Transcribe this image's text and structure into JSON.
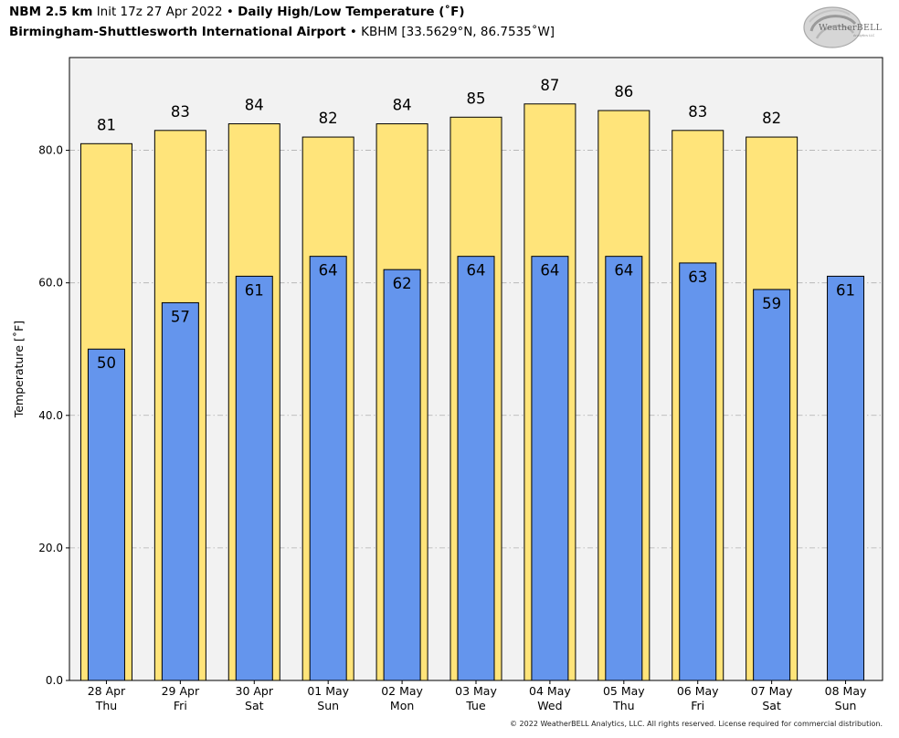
{
  "header": {
    "model": "NBM 2.5 km",
    "init": "Init 17z 27 Apr 2022",
    "bullet": "•",
    "product": "Daily High/Low Temperature (˚F)",
    "station_name": "Birmingham-Shuttlesworth International Airport",
    "station_info": "KBHM [33.5629°N, 86.7535˚W]"
  },
  "logo": {
    "text": "WeatherBELL",
    "subtext": "Analytics LLC"
  },
  "footer": "© 2022 WeatherBELL Analytics, LLC. All rights reserved. License required for commercial distribution.",
  "chart_data": {
    "type": "bar",
    "title": "Daily High/Low Temperature (˚F)",
    "ylabel": "Temperature [˚F]",
    "ylim": [
      0,
      94
    ],
    "yticks": [
      0,
      20,
      40,
      60,
      80
    ],
    "ytick_labels": [
      "0.0",
      "20.0",
      "40.0",
      "60.0",
      "80.0"
    ],
    "grid": "horizontal dash-dot",
    "categories": [
      {
        "date": "28 Apr",
        "day": "Thu"
      },
      {
        "date": "29 Apr",
        "day": "Fri"
      },
      {
        "date": "30 Apr",
        "day": "Sat"
      },
      {
        "date": "01 May",
        "day": "Sun"
      },
      {
        "date": "02 May",
        "day": "Mon"
      },
      {
        "date": "03 May",
        "day": "Tue"
      },
      {
        "date": "04 May",
        "day": "Wed"
      },
      {
        "date": "05 May",
        "day": "Thu"
      },
      {
        "date": "06 May",
        "day": "Fri"
      },
      {
        "date": "07 May",
        "day": "Sat"
      },
      {
        "date": "08 May",
        "day": "Sun"
      }
    ],
    "series": [
      {
        "values": [
          81,
          83,
          84,
          82,
          84,
          85,
          87,
          86,
          83,
          82,
          null
        ],
        "color": "#ffe47a"
      },
      {
        "values": [
          50,
          57,
          61,
          64,
          62,
          64,
          64,
          64,
          63,
          59,
          61
        ],
        "color": "#6495ed"
      }
    ],
    "bar_outline": "#000000",
    "plot_background": "#f2f2f2"
  }
}
